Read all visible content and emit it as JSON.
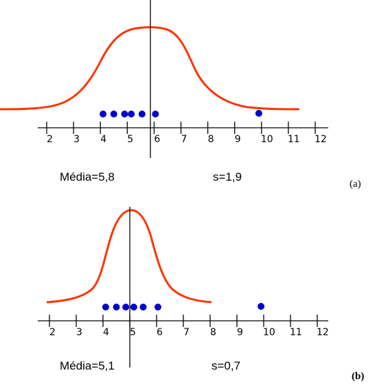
{
  "panels": [
    {
      "tag": "(a)",
      "mean_label": "Média=5,8",
      "sd_label": "s=1,9",
      "mean": 5.8,
      "sd": 1.9,
      "ticks": [
        "2",
        "3",
        "4",
        "5",
        "6",
        "7",
        "8",
        "9",
        "10",
        "11",
        "12"
      ],
      "points": [
        4.1,
        4.5,
        4.9,
        5.15,
        5.55,
        6.05,
        9.9
      ]
    },
    {
      "tag": "(b)",
      "mean_label": "Média=5,1",
      "sd_label": "s=0,7",
      "mean": 5.1,
      "sd": 0.7,
      "ticks": [
        "2",
        "3",
        "4",
        "5",
        "6",
        "7",
        "8",
        "9",
        "10",
        "11",
        "12"
      ],
      "points": [
        4.1,
        4.5,
        4.85,
        5.15,
        5.5,
        6.05,
        9.9
      ]
    }
  ],
  "colors": {
    "curve": "#ff3300",
    "points": "#0000cc",
    "axis": "#000000"
  }
}
